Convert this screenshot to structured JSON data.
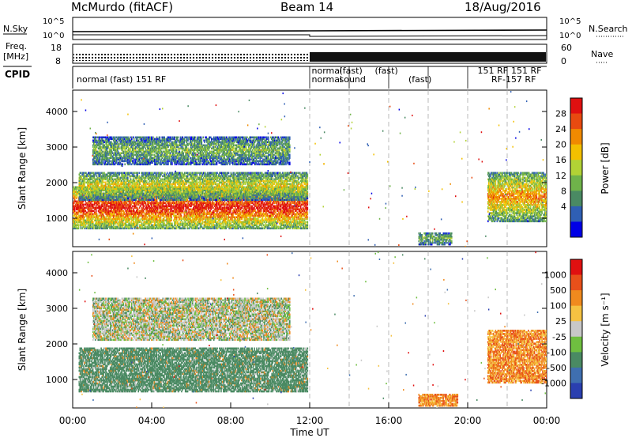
{
  "header": {
    "station": "McMurdo (fitACF)",
    "beam": "Beam 14",
    "date": "18/Aug/2016"
  },
  "strips": {
    "nsky_label": "N.Sky",
    "nsearch_label": "N.Search",
    "noise_ticks": [
      "10^5",
      "10^0"
    ],
    "freq_label_1": "Freq.",
    "freq_label_2": "[MHz]",
    "freq_ticks": [
      "18",
      "8"
    ],
    "nave_label": "Nave",
    "nave_ticks": [
      "60",
      "0"
    ],
    "cpid_label": "CPID",
    "cpid_entries": [
      {
        "text": "normal (fast) 151 RF",
        "hour": 0.2,
        "row": 0
      },
      {
        "text": "normal",
        "hour": 12.1,
        "row": -1
      },
      {
        "text": "normal",
        "hour": 12.1,
        "row": 0
      },
      {
        "text": "(fast)",
        "hour": 13.5,
        "row": -1
      },
      {
        "text": "sound",
        "hour": 13.5,
        "row": 0
      },
      {
        "text": "(fast)",
        "hour": 15.3,
        "row": -1
      },
      {
        "text": "(fast)",
        "hour": 17.0,
        "row": 0
      },
      {
        "text": "151 RF",
        "hour": 20.5,
        "row": -1
      },
      {
        "text": "151 RF",
        "hour": 22.2,
        "row": -1
      },
      {
        "text": "RF-157 RF",
        "hour": 21.2,
        "row": 0
      }
    ]
  },
  "chart_data": [
    {
      "type": "heatmap",
      "panel": "power",
      "ylabel": "Slant Range [km]",
      "xlabel": "",
      "xlim": [
        0,
        24
      ],
      "ylim": [
        200,
        4600
      ],
      "yticks": [
        1000,
        2000,
        3000,
        4000
      ],
      "colorbar": {
        "label": "Power [dB]",
        "range": [
          0,
          32
        ],
        "ticks": [
          "28",
          "24",
          "20",
          "16",
          "12",
          "8",
          "4"
        ],
        "colors": [
          "#0000e6",
          "#2f5fb4",
          "#4a8a63",
          "#6fb34a",
          "#b2d235",
          "#f3c000",
          "#f08a00",
          "#e84a10",
          "#e01010"
        ]
      },
      "regions": [
        {
          "t0": 0.0,
          "t1": 11.9,
          "r0": 700,
          "r1": 1900,
          "level": 0.8
        },
        {
          "t0": 0.3,
          "t1": 11.9,
          "r0": 1500,
          "r1": 2300,
          "level": 0.45
        },
        {
          "t0": 1.0,
          "t1": 11.0,
          "r0": 2500,
          "r1": 3300,
          "level": 0.3
        },
        {
          "t0": 21.0,
          "t1": 24.0,
          "r0": 900,
          "r1": 2300,
          "level": 0.6
        },
        {
          "t0": 17.5,
          "t1": 19.2,
          "r0": 250,
          "r1": 600,
          "level": 0.3
        }
      ]
    },
    {
      "type": "heatmap",
      "panel": "velocity",
      "ylabel": "Slant Range [km]",
      "xlabel": "Time UT",
      "xlim": [
        0,
        24
      ],
      "ylim": [
        200,
        4600
      ],
      "yticks": [
        1000,
        2000,
        3000,
        4000
      ],
      "xticks": [
        "00:00",
        "04:00",
        "08:00",
        "12:00",
        "16:00",
        "20:00",
        "00:00"
      ],
      "colorbar": {
        "label": "Velocity [m s⁻¹]",
        "ticks": [
          "1000",
          "500",
          "100",
          "25",
          "-25",
          "-100",
          "-500",
          "-1000"
        ],
        "colors": [
          "#2a3fb0",
          "#3f6fb0",
          "#4a8a63",
          "#6fbf40",
          "#c8c8c8",
          "#f5c242",
          "#f08a1e",
          "#e8501a",
          "#e01010"
        ]
      },
      "regions": [
        {
          "t0": 0.3,
          "t1": 11.9,
          "r0": 650,
          "r1": 1900,
          "level": "ground"
        },
        {
          "t0": 1.0,
          "t1": 11.0,
          "r0": 2100,
          "r1": 3300,
          "level": "mixed"
        },
        {
          "t0": 21.0,
          "t1": 24.0,
          "r0": 900,
          "r1": 2400,
          "level": "away"
        },
        {
          "t0": 17.5,
          "t1": 19.5,
          "r0": 250,
          "r1": 600,
          "level": "away"
        }
      ]
    }
  ]
}
